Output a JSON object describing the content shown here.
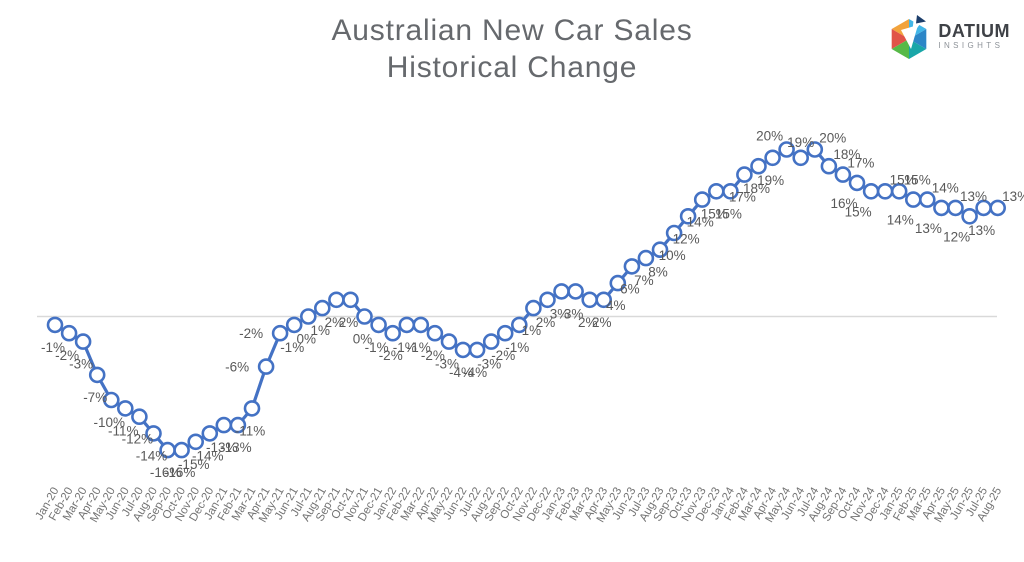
{
  "title": {
    "line1": "Australian New Car Sales",
    "line2": "Historical Change"
  },
  "logo": {
    "name": "DATIUM",
    "sub": "INSIGHTS"
  },
  "chart_data": {
    "type": "line",
    "title": "Australian New Car Sales Historical Change",
    "xlabel": "",
    "ylabel": "",
    "ylim": [
      -20,
      24
    ],
    "grid": "zero-line-only",
    "legend": "none",
    "data_label_format": "{v}%",
    "x": [
      "Jan-20",
      "Feb-20",
      "Mar-20",
      "Apr-20",
      "May-20",
      "Jun-20",
      "Jul-20",
      "Aug-20",
      "Sep-20",
      "Oct-20",
      "Nov-20",
      "Dec-20",
      "Jan-21",
      "Feb-21",
      "Mar-21",
      "Apr-21",
      "May-21",
      "Jun-21",
      "Jul-21",
      "Aug-21",
      "Sep-21",
      "Oct-21",
      "Nov-21",
      "Dec-21",
      "Jan-22",
      "Feb-22",
      "Mar-22",
      "Apr-22",
      "May-22",
      "Jun-22",
      "Jul-22",
      "Aug-22",
      "Sep-22",
      "Oct-22",
      "Nov-22",
      "Dec-22",
      "Jan-23",
      "Feb-23",
      "Mar-23",
      "Apr-23",
      "May-23",
      "Jun-23",
      "Jul-23",
      "Aug-23",
      "Sep-23",
      "Oct-23",
      "Nov-23",
      "Dec-23",
      "Jan-24",
      "Feb-24",
      "Mar-24",
      "Apr-24",
      "May-24",
      "Jun-24",
      "Jul-24",
      "Aug-24",
      "Sep-24",
      "Oct-24",
      "Nov-24",
      "Dec-24",
      "Jan-25",
      "Feb-25",
      "Mar-25",
      "Apr-25",
      "May-25",
      "Jun-25",
      "Jul-25",
      "Aug-25"
    ],
    "values": [
      -1,
      -2,
      -3,
      -7,
      -10,
      -11,
      -12,
      -14,
      -16,
      -16,
      -15,
      -14,
      -13,
      -13,
      -11,
      -6,
      -2,
      -1,
      0,
      1,
      2,
      2,
      0,
      -1,
      -2,
      -1,
      -1,
      -2,
      -3,
      -4,
      -4,
      -3,
      -2,
      -1,
      1,
      2,
      3,
      3,
      2,
      2,
      4,
      6,
      7,
      8,
      10,
      12,
      14,
      15,
      15,
      17,
      18,
      19,
      20,
      19,
      20,
      18,
      17,
      16,
      15,
      15,
      15,
      14,
      14,
      13,
      13,
      12,
      13,
      13
    ],
    "label_positions": [
      "b",
      "b",
      "b",
      "b",
      "b",
      "b",
      "b",
      "b",
      "b",
      "b",
      "b",
      "b",
      "b",
      "b",
      "b",
      "l",
      "l",
      "b",
      "b",
      "b",
      "b",
      "b",
      "b",
      "b",
      "b",
      "b",
      "b",
      "b",
      "b",
      "b",
      "b",
      "b",
      "b",
      "b",
      "b",
      "b",
      "b",
      "b",
      "b",
      "b",
      "b",
      "b",
      "b",
      "b",
      "b",
      "b",
      "b",
      "b",
      "b",
      "b",
      "b",
      "b",
      "al",
      "a",
      "ar",
      "ar",
      "ar",
      "bl",
      "bl",
      "ar",
      "ar",
      "bl",
      "ar",
      "bl",
      "ar",
      "bl",
      "b",
      "ar"
    ],
    "colors": {
      "line": "#4472C4",
      "marker_fill": "#ffffff",
      "marker_stroke": "#4472C4",
      "data_label": "#595959",
      "axis_label": "#737373",
      "gridline": "#d9d9d9",
      "title": "#66696d"
    }
  }
}
